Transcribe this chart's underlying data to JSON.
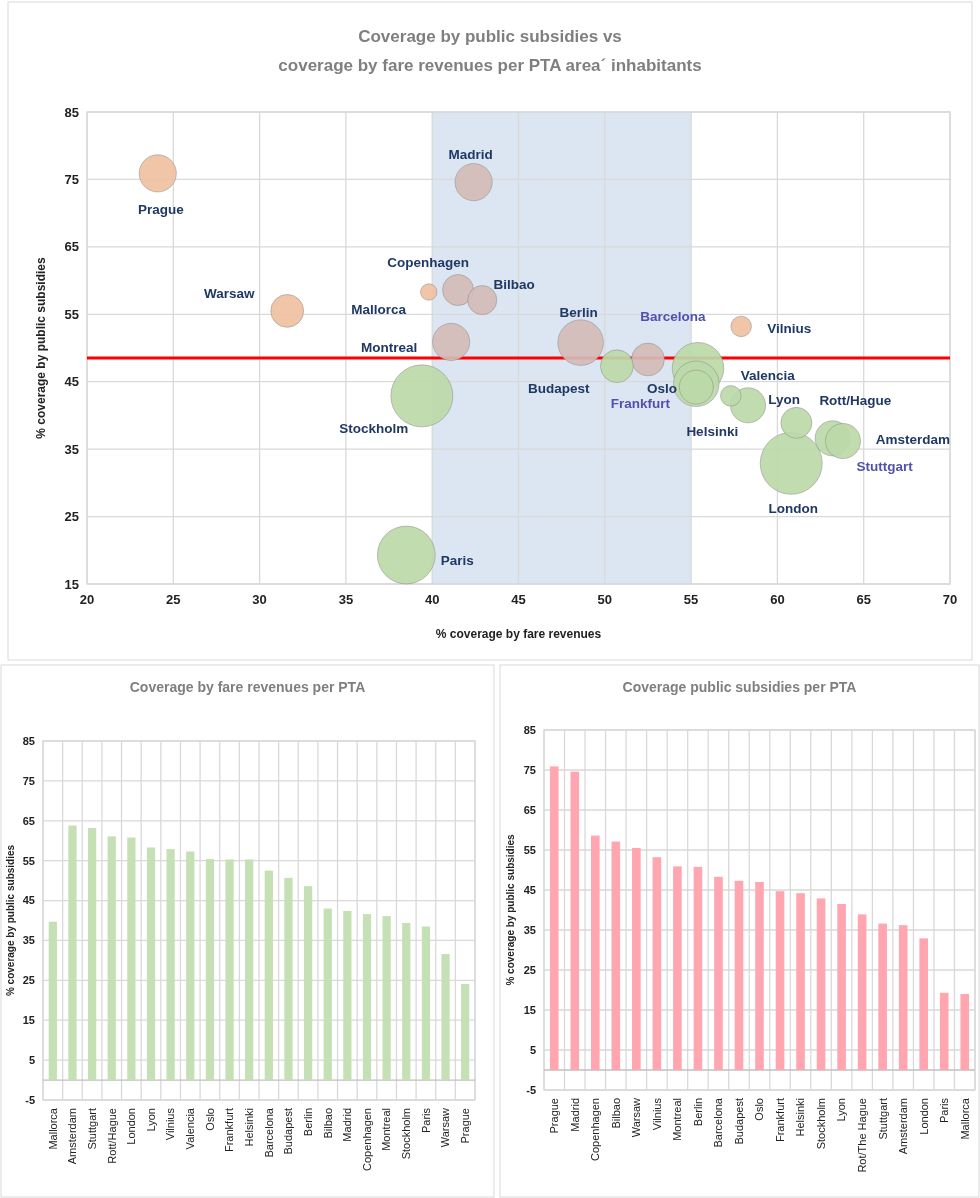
{
  "chart_data": [
    {
      "type": "bubble",
      "title": "Coverage by public subsidies vs\ncoverage by fare revenues per PTA area´ inhabitants",
      "xlabel": "% coverage by fare revenues",
      "ylabel": "% coverage by public subsidies",
      "xlim": [
        20,
        70
      ],
      "xticks": [
        20,
        25,
        30,
        35,
        40,
        45,
        50,
        55,
        60,
        65,
        70
      ],
      "ylim": [
        15,
        85
      ],
      "yticks": [
        15,
        25,
        35,
        45,
        55,
        65,
        75,
        85
      ],
      "grid": true,
      "series": [
        {
          "color": "#f0c0a0",
          "x": [
            24.1,
            31.6,
            39.8,
            57.9
          ],
          "values": [
            75.9,
            55.5,
            58.3,
            53.2
          ],
          "sizes": [
            0.36,
            0.28,
            0.07,
            0.11
          ]
        },
        {
          "color": "#d4bcb8",
          "x": [
            42.4,
            41.5,
            42.9,
            41.1,
            48.6,
            52.5
          ],
          "values": [
            74.6,
            58.6,
            57.1,
            50.9,
            50.8,
            48.3
          ],
          "sizes": [
            0.36,
            0.25,
            0.22,
            0.36,
            0.54,
            0.28
          ]
        },
        {
          "color": "#bcd9a8",
          "x": [
            39.4,
            38.5,
            50.7,
            55.4,
            55.3,
            55.3,
            57.3,
            58.3,
            61.1,
            63.2,
            63.8,
            60.8
          ],
          "values": [
            42.9,
            19.3,
            47.3,
            47.0,
            44.7,
            44.2,
            42.9,
            41.5,
            38.9,
            36.6,
            36.2,
            32.9
          ],
          "sizes": [
            1.0,
            0.87,
            0.28,
            0.69,
            0.54,
            0.3,
            0.11,
            0.32,
            0.25,
            0.32,
            0.32,
            1.0
          ]
        }
      ],
      "annotations": [
        {
          "text": "Prague",
          "x": 24.1,
          "y": 75.9
        },
        {
          "text": "Warsaw",
          "x": 31.6,
          "y": 55.5
        },
        {
          "text": "Mallorca",
          "x": 39.8,
          "y": 58.3
        },
        {
          "text": "Vilnius",
          "x": 57.9,
          "y": 53.2
        },
        {
          "text": "Madrid",
          "x": 42.4,
          "y": 74.6
        },
        {
          "text": "Copenhagen",
          "x": 41.5,
          "y": 58.6
        },
        {
          "text": "Bilbao",
          "x": 42.9,
          "y": 57.1
        },
        {
          "text": "Montreal",
          "x": 41.1,
          "y": 50.9
        },
        {
          "text": "Berlin",
          "x": 48.6,
          "y": 50.8
        },
        {
          "text": "Barcelona",
          "x": 52.5,
          "y": 48.3
        },
        {
          "text": "Stockholm",
          "x": 39.4,
          "y": 42.9
        },
        {
          "text": "Paris",
          "x": 38.5,
          "y": 19.3
        },
        {
          "text": "Budapest",
          "x": 50.7,
          "y": 47.3
        },
        {
          "text": "Oslo",
          "x": 55.4,
          "y": 47.0
        },
        {
          "text": "Frankfurt",
          "x": 55.3,
          "y": 44.7
        },
        {
          "text": "Helsinki",
          "x": 55.3,
          "y": 44.2
        },
        {
          "text": "Valencia",
          "x": 57.3,
          "y": 42.9
        },
        {
          "text": "Lyon",
          "x": 58.3,
          "y": 41.5
        },
        {
          "text": "Rott/Hague",
          "x": 61.1,
          "y": 38.9
        },
        {
          "text": "Stuttgart",
          "x": 63.2,
          "y": 36.6
        },
        {
          "text": "Amsterdam",
          "x": 63.8,
          "y": 36.2
        },
        {
          "text": "London",
          "x": 60.8,
          "y": 32.9
        }
      ],
      "ref_lines": [
        {
          "axis": "y",
          "value": 48.5,
          "color": "#ff0000"
        }
      ],
      "bands": [
        {
          "axis": "x",
          "from": 40,
          "to": 55,
          "color": "#dce6f2"
        }
      ]
    },
    {
      "type": "bar",
      "title": "Coverage by fare revenues per PTA",
      "ylabel": "% coverage by public subsidies",
      "categories": [
        "Mallorca",
        "Amsterdam",
        "Stuttgart",
        "Rott/Hague",
        "London",
        "Lyon",
        "Vilnius",
        "Valencia",
        "Oslo",
        "Frankfurt",
        "Helsinki",
        "Barcelona",
        "Budapest",
        "Berlin",
        "Bilbao",
        "Madrid",
        "Copenhagen",
        "Montreal",
        "Stockholm",
        "Paris",
        "Warsaw",
        "Prague"
      ],
      "values": [
        39.7,
        63.8,
        63.2,
        61.1,
        60.8,
        58.3,
        57.9,
        57.3,
        55.4,
        55.3,
        55.3,
        52.5,
        50.7,
        48.6,
        43.0,
        42.4,
        41.6,
        41.1,
        39.4,
        38.5,
        31.6,
        24.1
      ],
      "color": "#c5e0b4",
      "ylim": [
        -5,
        85
      ],
      "yticks": [
        -5,
        5,
        15,
        25,
        35,
        45,
        55,
        65,
        75,
        85
      ],
      "grid": true
    },
    {
      "type": "bar",
      "title": "Coverage public subsidies per PTA",
      "ylabel": "% coverage by public subsidies",
      "categories": [
        "Prague",
        "Madrid",
        "Copenhagen",
        "Bilbao",
        "Warsaw",
        "Vilnius",
        "Montreal",
        "Berlin",
        "Barcelona",
        "Budapest",
        "Oslo",
        "Frankfurt",
        "Helsinki",
        "Stockholm",
        "Lyon",
        "Rot/The Hague",
        "Stuttgart",
        "Amsterdam",
        "London",
        "Paris",
        "Mallorca"
      ],
      "values": [
        75.9,
        74.6,
        58.6,
        57.1,
        55.5,
        53.2,
        50.9,
        50.8,
        48.3,
        47.3,
        47.0,
        44.7,
        44.2,
        42.9,
        41.5,
        38.9,
        36.6,
        36.2,
        32.9,
        19.3,
        19.0
      ],
      "color": "#ffa6b0",
      "ylim": [
        -5,
        85
      ],
      "yticks": [
        -5,
        5,
        15,
        25,
        35,
        45,
        55,
        65,
        75,
        85
      ],
      "grid": true
    }
  ]
}
